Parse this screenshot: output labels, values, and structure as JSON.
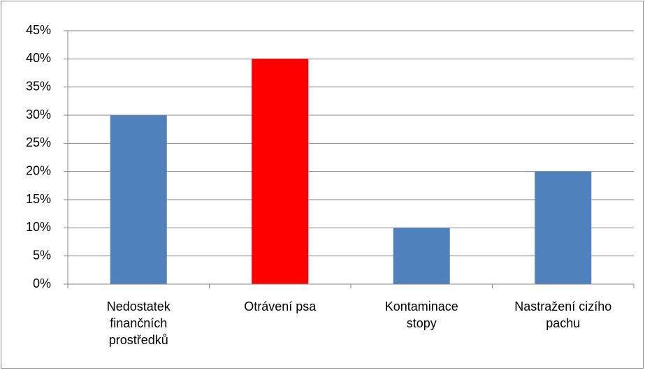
{
  "chart_data": {
    "type": "bar",
    "categories": [
      "Nedostatek finančních prostředků",
      "Otrávení psa",
      "Kontaminace stopy",
      "Nastražení cizího pachu"
    ],
    "values": [
      30,
      40,
      10,
      20
    ],
    "colors": [
      "#4f81bd",
      "#ff0000",
      "#4f81bd",
      "#4f81bd"
    ],
    "ylim": [
      0,
      45
    ],
    "yticks": [
      {
        "value": 0,
        "label": "0%"
      },
      {
        "value": 5,
        "label": "5%"
      },
      {
        "value": 10,
        "label": "10%"
      },
      {
        "value": 15,
        "label": "15%"
      },
      {
        "value": 20,
        "label": "20%"
      },
      {
        "value": 25,
        "label": "25%"
      },
      {
        "value": 30,
        "label": "30%"
      },
      {
        "value": 35,
        "label": "35%"
      },
      {
        "value": 40,
        "label": "40%"
      },
      {
        "value": 45,
        "label": "45%"
      }
    ],
    "grid": true
  }
}
